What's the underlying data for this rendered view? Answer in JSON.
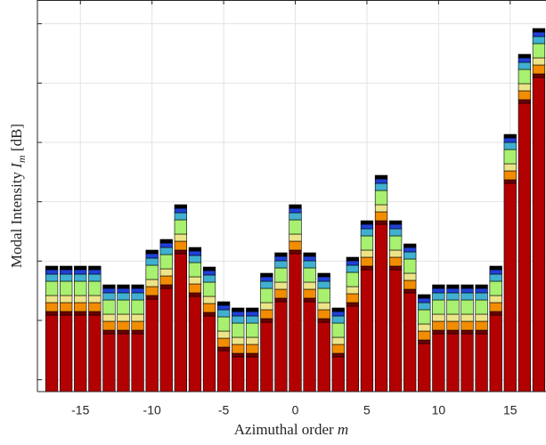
{
  "chart_data": {
    "type": "stacked-bar",
    "x": [
      -17,
      -16,
      -15,
      -14,
      -13,
      -12,
      -11,
      -10,
      -9,
      -8,
      -7,
      -6,
      -5,
      -4,
      -3,
      -2,
      -1,
      0,
      1,
      2,
      3,
      4,
      5,
      6,
      7,
      8,
      9,
      10,
      11,
      12,
      13,
      14,
      15,
      16,
      17
    ],
    "xlim": [
      -18,
      17.5
    ],
    "xticks": [
      -15,
      -10,
      -5,
      0,
      5,
      10,
      15
    ],
    "ylim": [
      0,
      66
    ],
    "yticks": [
      2,
      12,
      22,
      32,
      42,
      52,
      62
    ],
    "grid": true,
    "xlabel": {
      "text": "Azimuthal order",
      "symbol": "m"
    },
    "ylabel": {
      "text": "Modal Intensity",
      "symbol": "I",
      "subscript": "m",
      "unit": "[dB]"
    },
    "series": [
      {
        "color": "#b30000",
        "values": [
          12.9,
          12.9,
          12.9,
          12.9,
          9.75,
          9.75,
          9.75,
          15.6,
          17.4,
          23.25,
          16.05,
          12.75,
          6.9,
          5.85,
          5.85,
          11.7,
          15.15,
          23.25,
          15.15,
          11.7,
          5.85,
          14.4,
          20.55,
          28.2,
          20.55,
          16.65,
          8.1,
          9.75,
          9.75,
          9.75,
          9.75,
          12.9,
          35.1,
          48.6,
          52.95
        ]
      },
      {
        "color": "#6e0000",
        "values": [
          0.6,
          0.6,
          0.6,
          0.6,
          0.6,
          0.6,
          0.6,
          0.6,
          0.6,
          0.6,
          0.6,
          0.6,
          0.6,
          0.6,
          0.6,
          0.6,
          0.6,
          0.6,
          0.6,
          0.6,
          0.6,
          0.6,
          0.6,
          0.6,
          0.6,
          0.6,
          0.6,
          0.6,
          0.6,
          0.6,
          0.6,
          0.6,
          0.6,
          0.6,
          0.6
        ]
      },
      {
        "color": "#f28c00",
        "values": [
          1.5,
          1.5,
          1.5,
          1.5,
          1.5,
          1.5,
          1.5,
          1.5,
          1.5,
          1.5,
          1.5,
          1.5,
          1.5,
          1.5,
          1.5,
          1.5,
          1.5,
          1.5,
          1.5,
          1.5,
          1.5,
          1.5,
          1.5,
          1.5,
          1.5,
          1.5,
          1.5,
          1.5,
          1.5,
          1.5,
          1.5,
          1.5,
          1.5,
          1.5,
          1.5
        ]
      },
      {
        "color": "#ece488",
        "values": [
          1.2,
          1.2,
          1.2,
          1.2,
          1.2,
          1.2,
          1.2,
          1.2,
          1.2,
          1.2,
          1.2,
          1.2,
          1.2,
          1.2,
          1.2,
          1.2,
          1.2,
          1.2,
          1.2,
          1.2,
          1.2,
          1.2,
          1.2,
          1.2,
          1.2,
          1.2,
          1.2,
          1.2,
          1.2,
          1.2,
          1.2,
          1.2,
          1.2,
          1.2,
          1.2
        ]
      },
      {
        "color": "#a8f070",
        "values": [
          2.4,
          2.4,
          2.4,
          2.4,
          2.4,
          2.4,
          2.4,
          2.4,
          2.4,
          2.4,
          2.4,
          2.4,
          2.4,
          2.4,
          2.4,
          2.4,
          2.4,
          2.4,
          2.4,
          2.4,
          2.4,
          2.4,
          2.4,
          2.4,
          2.4,
          2.4,
          2.4,
          2.4,
          2.4,
          2.4,
          2.4,
          2.4,
          2.4,
          2.4,
          2.4
        ]
      },
      {
        "color": "#40b0d0",
        "values": [
          1.2,
          1.2,
          1.2,
          1.2,
          1.2,
          1.2,
          1.2,
          1.2,
          1.2,
          1.2,
          1.2,
          1.2,
          1.2,
          1.2,
          1.2,
          1.2,
          1.2,
          1.2,
          1.2,
          1.2,
          1.2,
          1.2,
          1.2,
          1.2,
          1.2,
          1.2,
          1.2,
          1.2,
          1.2,
          1.2,
          1.2,
          1.2,
          1.2,
          1.2,
          1.2
        ]
      },
      {
        "color": "#2040d8",
        "values": [
          0.75,
          0.75,
          0.75,
          0.75,
          0.75,
          0.75,
          0.75,
          0.75,
          0.75,
          0.75,
          0.75,
          0.75,
          0.75,
          0.75,
          0.75,
          0.75,
          0.75,
          0.75,
          0.75,
          0.75,
          0.75,
          0.75,
          0.75,
          0.75,
          0.75,
          0.75,
          0.75,
          0.75,
          0.75,
          0.75,
          0.75,
          0.75,
          0.75,
          0.75,
          0.75
        ]
      },
      {
        "color": "#000000",
        "values": [
          0.6,
          0.6,
          0.6,
          0.6,
          0.6,
          0.6,
          0.6,
          0.6,
          0.6,
          0.6,
          0.6,
          0.6,
          0.6,
          0.6,
          0.6,
          0.6,
          0.6,
          0.6,
          0.6,
          0.6,
          0.6,
          0.6,
          0.6,
          0.6,
          0.6,
          0.6,
          0.6,
          0.6,
          0.6,
          0.6,
          0.6,
          0.6,
          0.6,
          0.6,
          0.6
        ]
      }
    ]
  }
}
